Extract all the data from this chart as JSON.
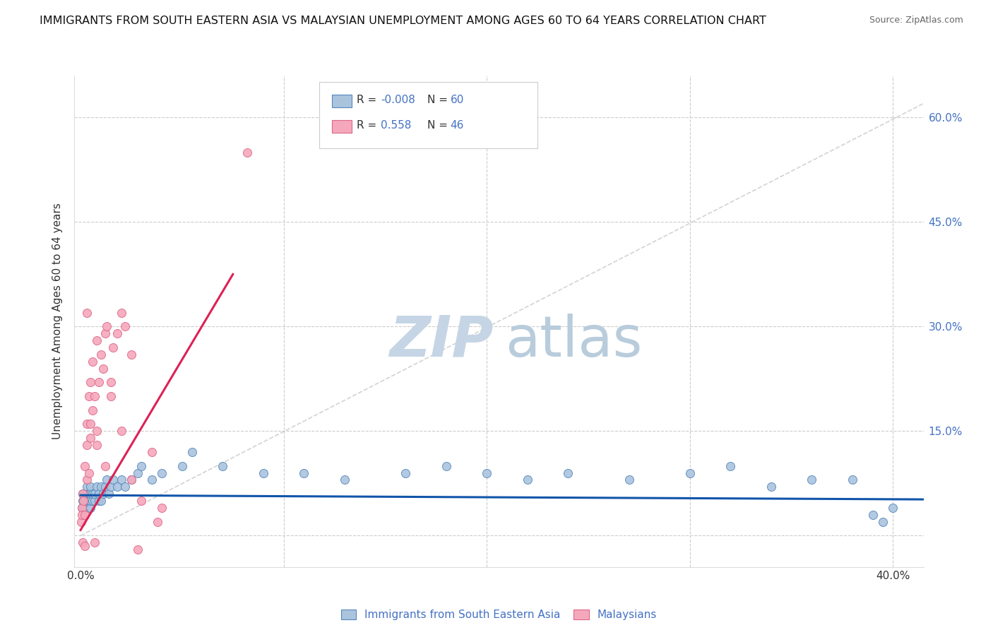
{
  "title": "IMMIGRANTS FROM SOUTH EASTERN ASIA VS MALAYSIAN UNEMPLOYMENT AMONG AGES 60 TO 64 YEARS CORRELATION CHART",
  "source": "Source: ZipAtlas.com",
  "ylabel": "Unemployment Among Ages 60 to 64 years",
  "xlabel_blue": "Immigrants from South Eastern Asia",
  "xlabel_pink": "Malaysians",
  "y_ticks": [
    0.0,
    0.15,
    0.3,
    0.45,
    0.6
  ],
  "y_tick_labels": [
    "",
    "15.0%",
    "30.0%",
    "45.0%",
    "60.0%"
  ],
  "x_ticks": [
    0.0,
    0.1,
    0.2,
    0.3,
    0.4
  ],
  "x_tick_labels": [
    "0.0%",
    "",
    "",
    "",
    "40.0%"
  ],
  "blue_R": -0.008,
  "blue_N": 60,
  "pink_R": 0.558,
  "pink_N": 46,
  "blue_color": "#aac4de",
  "pink_color": "#f5a8bc",
  "blue_edge": "#5588bb",
  "pink_edge": "#dd6688",
  "regression_blue_color": "#1155aa",
  "regression_pink_color": "#dd2255",
  "diagonal_color": "#c8c8c8",
  "watermark_zip_color": "#c5d5e5",
  "watermark_atlas_color": "#b8ccdc",
  "background_color": "#ffffff",
  "grid_color": "#cccccc",
  "title_color": "#111111",
  "source_color": "#666666",
  "axis_color": "#333333",
  "right_axis_color": "#4472c4",
  "legend_edge_color": "#cccccc",
  "xlim": [
    -0.003,
    0.415
  ],
  "ylim": [
    -0.045,
    0.66
  ],
  "blue_x": [
    0.0005,
    0.001,
    0.001,
    0.0015,
    0.002,
    0.002,
    0.0025,
    0.003,
    0.003,
    0.003,
    0.004,
    0.004,
    0.004,
    0.005,
    0.005,
    0.005,
    0.005,
    0.006,
    0.006,
    0.007,
    0.007,
    0.008,
    0.009,
    0.009,
    0.01,
    0.01,
    0.011,
    0.012,
    0.013,
    0.014,
    0.015,
    0.016,
    0.018,
    0.02,
    0.022,
    0.025,
    0.028,
    0.03,
    0.035,
    0.04,
    0.05,
    0.055,
    0.07,
    0.09,
    0.11,
    0.13,
    0.16,
    0.18,
    0.2,
    0.22,
    0.24,
    0.27,
    0.3,
    0.32,
    0.34,
    0.36,
    0.38,
    0.39,
    0.395,
    0.4
  ],
  "blue_y": [
    0.04,
    0.05,
    0.06,
    0.04,
    0.05,
    0.06,
    0.04,
    0.05,
    0.06,
    0.07,
    0.04,
    0.05,
    0.06,
    0.04,
    0.05,
    0.06,
    0.07,
    0.05,
    0.06,
    0.05,
    0.06,
    0.07,
    0.05,
    0.06,
    0.05,
    0.07,
    0.06,
    0.07,
    0.08,
    0.06,
    0.07,
    0.08,
    0.07,
    0.08,
    0.07,
    0.08,
    0.09,
    0.1,
    0.08,
    0.09,
    0.1,
    0.12,
    0.1,
    0.09,
    0.09,
    0.08,
    0.09,
    0.1,
    0.09,
    0.08,
    0.09,
    0.08,
    0.09,
    0.1,
    0.07,
    0.08,
    0.08,
    0.03,
    0.02,
    0.04
  ],
  "pink_x": [
    0.0002,
    0.0005,
    0.0008,
    0.001,
    0.001,
    0.0015,
    0.002,
    0.002,
    0.002,
    0.003,
    0.003,
    0.003,
    0.004,
    0.004,
    0.005,
    0.005,
    0.006,
    0.006,
    0.007,
    0.008,
    0.008,
    0.009,
    0.01,
    0.011,
    0.012,
    0.013,
    0.015,
    0.016,
    0.018,
    0.02,
    0.022,
    0.025,
    0.028,
    0.03,
    0.035,
    0.038,
    0.04,
    0.003,
    0.005,
    0.008,
    0.012,
    0.015,
    0.02,
    0.025,
    0.007,
    0.082
  ],
  "pink_y": [
    0.02,
    0.04,
    0.03,
    -0.01,
    0.06,
    0.05,
    0.03,
    -0.015,
    0.1,
    0.08,
    0.13,
    0.16,
    0.09,
    0.2,
    0.14,
    0.22,
    0.18,
    0.25,
    0.2,
    0.15,
    0.28,
    0.22,
    0.26,
    0.24,
    0.29,
    0.3,
    0.22,
    0.27,
    0.29,
    0.32,
    0.3,
    0.26,
    -0.02,
    0.05,
    0.12,
    0.02,
    0.04,
    0.32,
    0.16,
    0.13,
    0.1,
    0.2,
    0.15,
    0.08,
    -0.01,
    0.55
  ],
  "pink_line_x": [
    0.0,
    0.075
  ],
  "pink_line_y": [
    0.008,
    0.375
  ],
  "blue_line_x": [
    0.0,
    0.415
  ],
  "blue_line_y": [
    0.058,
    0.052
  ]
}
